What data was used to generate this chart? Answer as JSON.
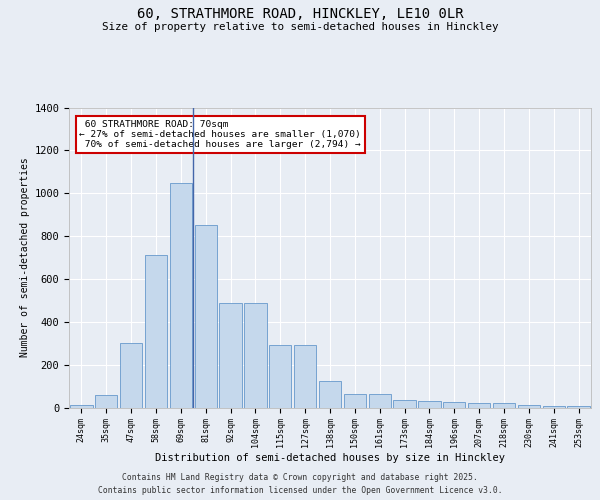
{
  "title_line1": "60, STRATHMORE ROAD, HINCKLEY, LE10 0LR",
  "title_line2": "Size of property relative to semi-detached houses in Hinckley",
  "xlabel": "Distribution of semi-detached houses by size in Hinckley",
  "ylabel": "Number of semi-detached properties",
  "bar_labels": [
    "24sqm",
    "35sqm",
    "47sqm",
    "58sqm",
    "69sqm",
    "81sqm",
    "92sqm",
    "104sqm",
    "115sqm",
    "127sqm",
    "138sqm",
    "150sqm",
    "161sqm",
    "173sqm",
    "184sqm",
    "196sqm",
    "207sqm",
    "218sqm",
    "230sqm",
    "241sqm",
    "253sqm"
  ],
  "bar_values": [
    10,
    60,
    300,
    710,
    1050,
    850,
    490,
    490,
    290,
    290,
    125,
    65,
    65,
    35,
    30,
    25,
    20,
    20,
    10,
    8,
    8
  ],
  "bar_color": "#c5d8ec",
  "bar_edge_color": "#6699cc",
  "property_label": "60 STRATHMORE ROAD: 70sqm",
  "pct_smaller": 27,
  "pct_larger": 70,
  "count_smaller": 1070,
  "count_larger": 2794,
  "annotation_box_color": "#cc0000",
  "vline_color": "#4466aa",
  "ylim": [
    0,
    1400
  ],
  "yticks": [
    0,
    200,
    400,
    600,
    800,
    1000,
    1200,
    1400
  ],
  "background_color": "#e8edf4",
  "plot_bg_color": "#e8edf4",
  "grid_color": "#ffffff",
  "footer_line1": "Contains HM Land Registry data © Crown copyright and database right 2025.",
  "footer_line2": "Contains public sector information licensed under the Open Government Licence v3.0."
}
